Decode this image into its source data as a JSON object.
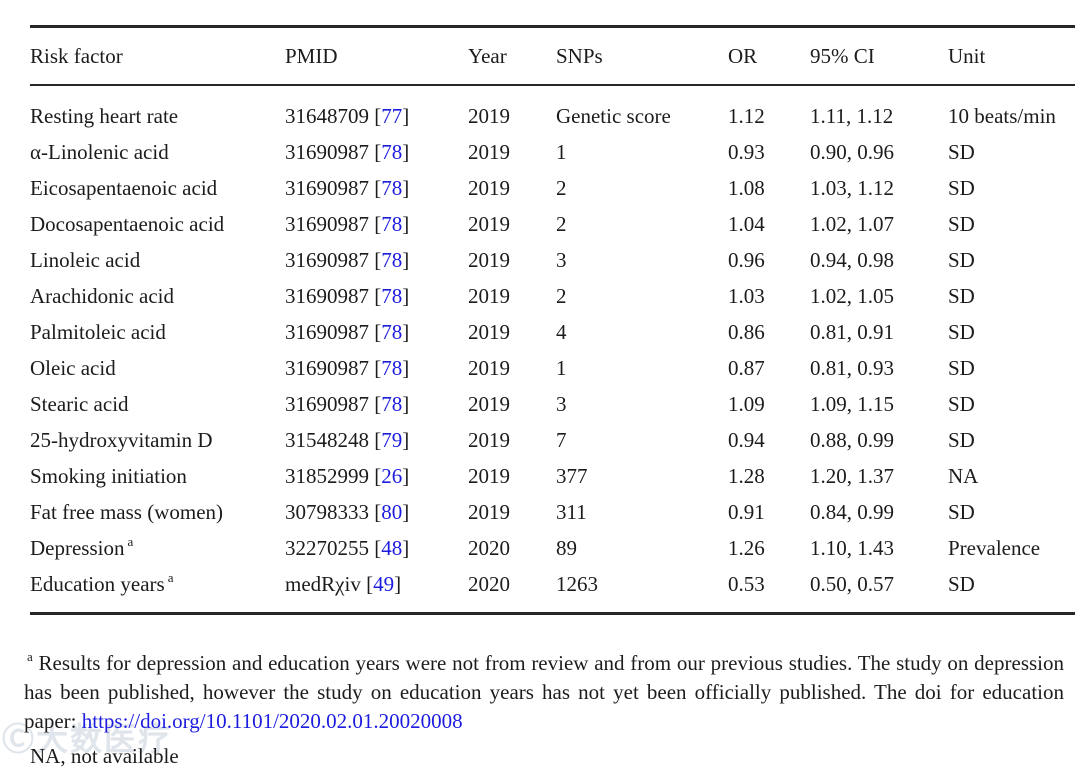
{
  "table": {
    "columns": [
      "Risk factor",
      "PMID",
      "Year",
      "SNPs",
      "OR",
      "95% CI",
      "Unit"
    ],
    "rows": [
      {
        "risk_factor": "Resting heart rate",
        "sup": "",
        "pmid": "31648709",
        "ref": "77",
        "year": "2019",
        "snps": "Genetic score",
        "or": "1.12",
        "ci": "1.11, 1.12",
        "unit": "10 beats/min"
      },
      {
        "risk_factor": "α-Linolenic acid",
        "sup": "",
        "pmid": "31690987",
        "ref": "78",
        "year": "2019",
        "snps": "1",
        "or": "0.93",
        "ci": "0.90, 0.96",
        "unit": "SD"
      },
      {
        "risk_factor": "Eicosapentaenoic acid",
        "sup": "",
        "pmid": "31690987",
        "ref": "78",
        "year": "2019",
        "snps": "2",
        "or": "1.08",
        "ci": "1.03, 1.12",
        "unit": "SD"
      },
      {
        "risk_factor": "Docosapentaenoic acid",
        "sup": "",
        "pmid": "31690987",
        "ref": "78",
        "year": "2019",
        "snps": "2",
        "or": "1.04",
        "ci": "1.02, 1.07",
        "unit": "SD"
      },
      {
        "risk_factor": "Linoleic acid",
        "sup": "",
        "pmid": "31690987",
        "ref": "78",
        "year": "2019",
        "snps": "3",
        "or": "0.96",
        "ci": "0.94, 0.98",
        "unit": "SD"
      },
      {
        "risk_factor": "Arachidonic acid",
        "sup": "",
        "pmid": "31690987",
        "ref": "78",
        "year": "2019",
        "snps": "2",
        "or": "1.03",
        "ci": "1.02, 1.05",
        "unit": "SD"
      },
      {
        "risk_factor": "Palmitoleic acid",
        "sup": "",
        "pmid": "31690987",
        "ref": "78",
        "year": "2019",
        "snps": "4",
        "or": "0.86",
        "ci": "0.81, 0.91",
        "unit": "SD"
      },
      {
        "risk_factor": "Oleic acid",
        "sup": "",
        "pmid": "31690987",
        "ref": "78",
        "year": "2019",
        "snps": "1",
        "or": "0.87",
        "ci": "0.81, 0.93",
        "unit": "SD"
      },
      {
        "risk_factor": "Stearic acid",
        "sup": "",
        "pmid": "31690987",
        "ref": "78",
        "year": "2019",
        "snps": "3",
        "or": "1.09",
        "ci": "1.09, 1.15",
        "unit": "SD"
      },
      {
        "risk_factor": "25-hydroxyvitamin D",
        "sup": "",
        "pmid": "31548248",
        "ref": "79",
        "year": "2019",
        "snps": "7",
        "or": "0.94",
        "ci": "0.88, 0.99",
        "unit": "SD"
      },
      {
        "risk_factor": "Smoking initiation",
        "sup": "",
        "pmid": "31852999",
        "ref": "26",
        "year": "2019",
        "snps": "377",
        "or": "1.28",
        "ci": "1.20, 1.37",
        "unit": "NA"
      },
      {
        "risk_factor": "Fat free mass (women)",
        "sup": "",
        "pmid": "30798333",
        "ref": "80",
        "year": "2019",
        "snps": "311",
        "or": "0.91",
        "ci": "0.84, 0.99",
        "unit": "SD"
      },
      {
        "risk_factor": "Depression",
        "sup": "a",
        "pmid": "32270255",
        "ref": "48",
        "year": "2020",
        "snps": "89",
        "or": "1.26",
        "ci": "1.10, 1.43",
        "unit": "Prevalence"
      },
      {
        "risk_factor": "Education years",
        "sup": "a",
        "pmid": "medRχiv",
        "ref": "49",
        "year": "2020",
        "snps": "1263",
        "or": "0.53",
        "ci": "0.50, 0.57",
        "unit": "SD"
      }
    ]
  },
  "footnote": {
    "marker": "a",
    "text_before_link": " Results for depression and education years were not from review and from our previous studies. The study on depression has been published, however the study on education years has not yet been officially published. The doi for education paper: ",
    "link": "https://doi.org/10.1101/2020.02.01.20020008",
    "na_note": "NA, not available"
  },
  "watermark": {
    "text": "Ⓒ大数医疗"
  },
  "colors": {
    "text": "#1c1c1c",
    "link": "#1c1ce0",
    "rule": "#262626"
  }
}
